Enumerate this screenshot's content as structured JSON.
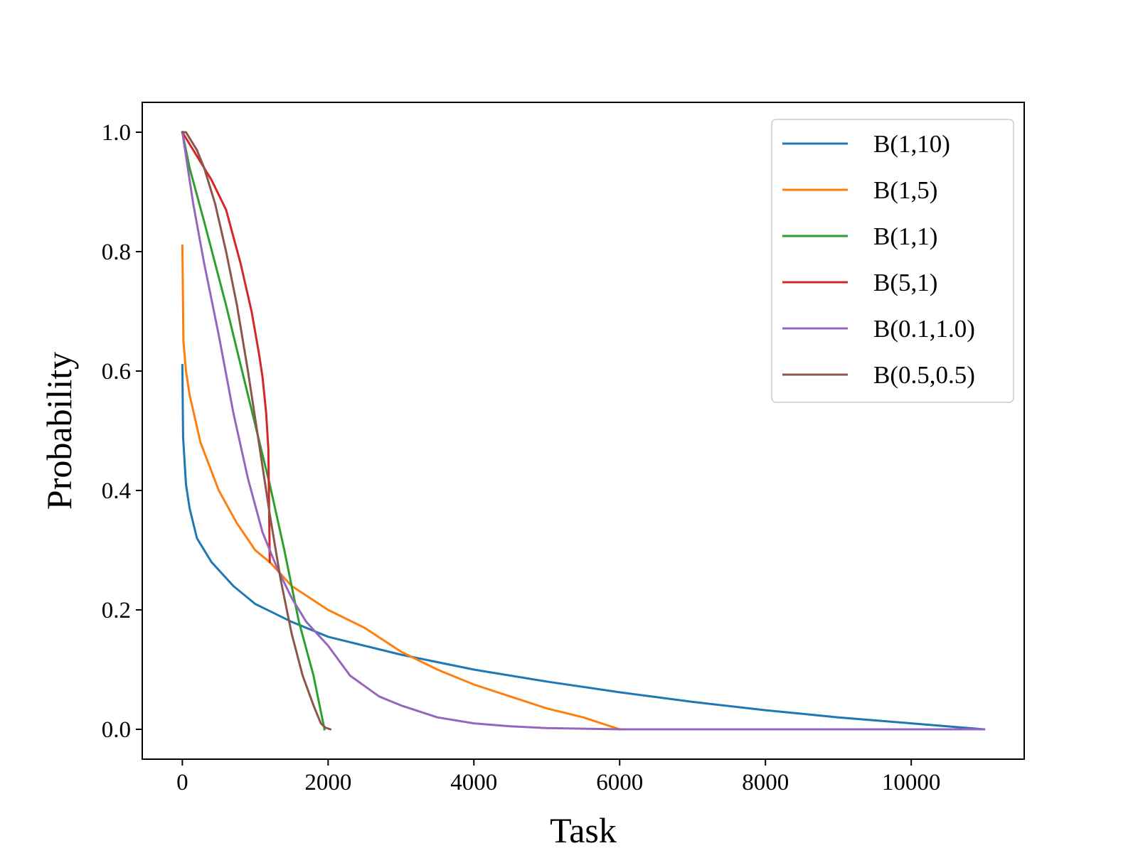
{
  "chart_data": {
    "type": "line",
    "xlabel": "Task",
    "ylabel": "Probability",
    "xlim": [
      -550,
      11550
    ],
    "ylim": [
      -0.05,
      1.05
    ],
    "xticks": [
      0,
      2000,
      4000,
      6000,
      8000,
      10000
    ],
    "xtick_labels": [
      "0",
      "2000",
      "4000",
      "6000",
      "8000",
      "10000"
    ],
    "yticks": [
      0.0,
      0.2,
      0.4,
      0.6,
      0.8,
      1.0
    ],
    "ytick_labels": [
      "0.0",
      "0.2",
      "0.4",
      "0.6",
      "0.8",
      "1.0"
    ],
    "grid": false,
    "legend_position": "top-right",
    "series": [
      {
        "name": "B(1,10)",
        "color": "#1f77b4",
        "points": [
          [
            0,
            0.61
          ],
          [
            10,
            0.49
          ],
          [
            50,
            0.41
          ],
          [
            100,
            0.37
          ],
          [
            200,
            0.32
          ],
          [
            400,
            0.28
          ],
          [
            700,
            0.24
          ],
          [
            1000,
            0.21
          ],
          [
            1500,
            0.18
          ],
          [
            2000,
            0.155
          ],
          [
            3000,
            0.125
          ],
          [
            4000,
            0.1
          ],
          [
            5000,
            0.08
          ],
          [
            6000,
            0.062
          ],
          [
            7000,
            0.046
          ],
          [
            8000,
            0.032
          ],
          [
            9000,
            0.02
          ],
          [
            10000,
            0.01
          ],
          [
            11000,
            0.0
          ]
        ]
      },
      {
        "name": "B(1,5)",
        "color": "#ff7f0e",
        "points": [
          [
            0,
            0.81
          ],
          [
            15,
            0.65
          ],
          [
            50,
            0.6
          ],
          [
            100,
            0.56
          ],
          [
            250,
            0.48
          ],
          [
            500,
            0.4
          ],
          [
            750,
            0.345
          ],
          [
            1000,
            0.3
          ],
          [
            1200,
            0.28
          ],
          [
            1500,
            0.24
          ],
          [
            2000,
            0.2
          ],
          [
            2500,
            0.17
          ],
          [
            3000,
            0.13
          ],
          [
            3500,
            0.1
          ],
          [
            4000,
            0.075
          ],
          [
            4500,
            0.055
          ],
          [
            5000,
            0.035
          ],
          [
            5500,
            0.02
          ],
          [
            6000,
            0.0
          ]
        ]
      },
      {
        "name": "B(1,1)",
        "color": "#2ca02c",
        "points": [
          [
            0,
            1.0
          ],
          [
            100,
            0.94
          ],
          [
            300,
            0.85
          ],
          [
            600,
            0.71
          ],
          [
            900,
            0.56
          ],
          [
            1200,
            0.41
          ],
          [
            1400,
            0.3
          ],
          [
            1600,
            0.18
          ],
          [
            1800,
            0.09
          ],
          [
            1950,
            0.0
          ]
        ]
      },
      {
        "name": "B(5,1)",
        "color": "#d62728",
        "points": [
          [
            0,
            1.0
          ],
          [
            200,
            0.96
          ],
          [
            400,
            0.92
          ],
          [
            600,
            0.87
          ],
          [
            800,
            0.78
          ],
          [
            950,
            0.7
          ],
          [
            1050,
            0.63
          ],
          [
            1100,
            0.59
          ],
          [
            1150,
            0.53
          ],
          [
            1180,
            0.47
          ],
          [
            1200,
            0.28
          ]
        ]
      },
      {
        "name": "B(0.1,1.0)",
        "color": "#9467bd",
        "points": [
          [
            0,
            1.0
          ],
          [
            150,
            0.88
          ],
          [
            300,
            0.78
          ],
          [
            500,
            0.66
          ],
          [
            700,
            0.53
          ],
          [
            900,
            0.42
          ],
          [
            1100,
            0.33
          ],
          [
            1300,
            0.27
          ],
          [
            1500,
            0.22
          ],
          [
            1700,
            0.18
          ],
          [
            2000,
            0.14
          ],
          [
            2300,
            0.09
          ],
          [
            2700,
            0.055
          ],
          [
            3000,
            0.04
          ],
          [
            3500,
            0.02
          ],
          [
            4000,
            0.01
          ],
          [
            4500,
            0.005
          ],
          [
            5000,
            0.002
          ],
          [
            6000,
            0.0
          ],
          [
            11000,
            0.0
          ]
        ]
      },
      {
        "name": "B(0.5,0.5)",
        "color": "#8c564b",
        "points": [
          [
            0,
            1.0
          ],
          [
            50,
            1.0
          ],
          [
            100,
            0.99
          ],
          [
            200,
            0.97
          ],
          [
            300,
            0.94
          ],
          [
            450,
            0.88
          ],
          [
            600,
            0.8
          ],
          [
            750,
            0.71
          ],
          [
            900,
            0.6
          ],
          [
            1050,
            0.48
          ],
          [
            1200,
            0.36
          ],
          [
            1350,
            0.25
          ],
          [
            1500,
            0.16
          ],
          [
            1650,
            0.09
          ],
          [
            1800,
            0.04
          ],
          [
            1900,
            0.01
          ],
          [
            1960,
            0.003
          ],
          [
            2030,
            0.0
          ]
        ]
      }
    ]
  }
}
